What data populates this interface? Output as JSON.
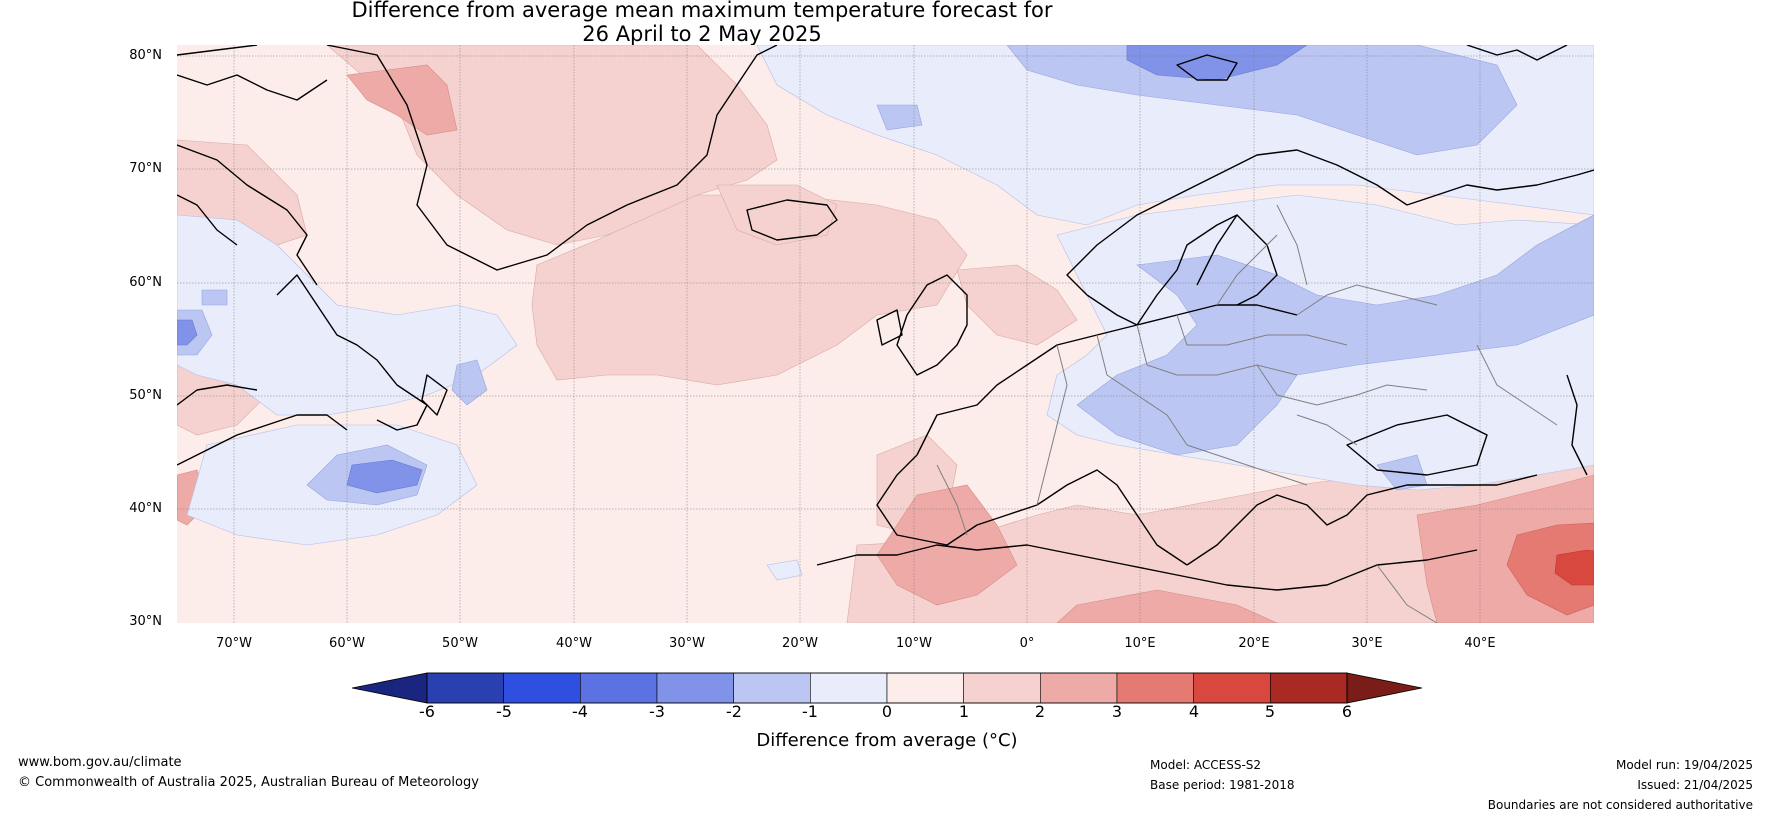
{
  "title": {
    "line1": "Difference from average mean maximum temperature forecast for",
    "line2": "26 April to 2 May 2025"
  },
  "map": {
    "projection": "equirectangular",
    "extent": {
      "lon": [
        -75,
        50
      ],
      "lat": [
        30,
        81
      ]
    },
    "lat_ticks": [
      "80°N",
      "70°N",
      "60°N",
      "50°N",
      "40°N",
      "30°N"
    ],
    "lon_ticks": [
      "70°W",
      "60°W",
      "50°W",
      "40°W",
      "30°W",
      "20°W",
      "10°W",
      "0°",
      "10°E",
      "20°E",
      "30°E",
      "40°E"
    ],
    "gridlines": true,
    "ocean_color": "#fcecea"
  },
  "colorbar": {
    "levels": [
      "-6",
      "-5",
      "-4",
      "-3",
      "-2",
      "-1",
      "0",
      "1",
      "2",
      "3",
      "4",
      "5",
      "6"
    ],
    "colors": [
      "#2a3fb0",
      "#2f4fe0",
      "#5c72e3",
      "#8093e8",
      "#bcc6f2",
      "#e8ecfb",
      "#fcecea",
      "#f5d2d0",
      "#eeaaa6",
      "#e57a72",
      "#d9483e",
      "#a82a22"
    ],
    "under_color": "#1a2580",
    "over_color": "#7a1c17",
    "label": "Difference from average (°C)"
  },
  "footer": {
    "website": "www.bom.gov.au/climate",
    "copyright": "© Commonwealth of Australia 2025, Australian Bureau of Meteorology",
    "model": "Model: ACCESS-S2",
    "base_period": "Base period: 1981-2018",
    "model_run": "Model run: 19/04/2025",
    "issued": "Issued: 21/04/2025",
    "disclaimer": "Boundaries are not considered authoritative"
  }
}
